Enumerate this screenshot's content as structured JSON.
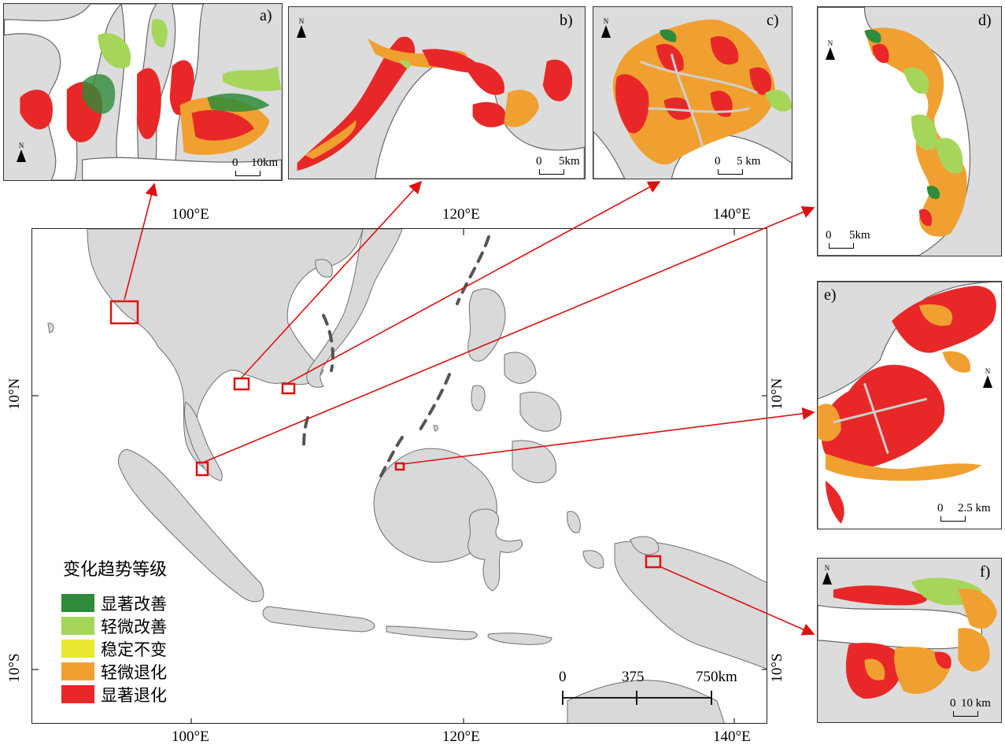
{
  "panels": [
    {
      "label": "a)",
      "scale_zero": "0",
      "scale_end": "10km"
    },
    {
      "label": "b)",
      "scale_zero": "0",
      "scale_end": "5km"
    },
    {
      "label": "c)",
      "scale_zero": "0",
      "scale_end": "5 km"
    },
    {
      "label": "d)",
      "scale_zero": "0",
      "scale_end": "5km"
    },
    {
      "label": "e)",
      "scale_zero": "0",
      "scale_end": "2.5 km"
    },
    {
      "label": "f)",
      "scale_zero": "0",
      "scale_end": "10 km"
    }
  ],
  "north_letter": "N",
  "axes": {
    "top": [
      "100°E",
      "120°E",
      "140°E"
    ],
    "bottom": [
      "100°E",
      "120°E",
      "140°E"
    ],
    "left": [
      "10°N",
      "10°S"
    ],
    "right": [
      "10°N",
      "10°S"
    ]
  },
  "legend": {
    "title": "变化趋势等级",
    "items": [
      {
        "label": "显著改善",
        "color": "#2e8b3a"
      },
      {
        "label": "轻微改善",
        "color": "#a5d65a"
      },
      {
        "label": "稳定不变",
        "color": "#e8e830"
      },
      {
        "label": "轻微退化",
        "color": "#f0a030"
      },
      {
        "label": "显著退化",
        "color": "#e82828"
      }
    ]
  },
  "main_scale": {
    "labels": [
      "0",
      "375",
      "750km"
    ]
  },
  "colors": {
    "land": "#d9d9d9",
    "outline": "#707070",
    "callout": "#dd1111",
    "sea": "#ffffff"
  }
}
